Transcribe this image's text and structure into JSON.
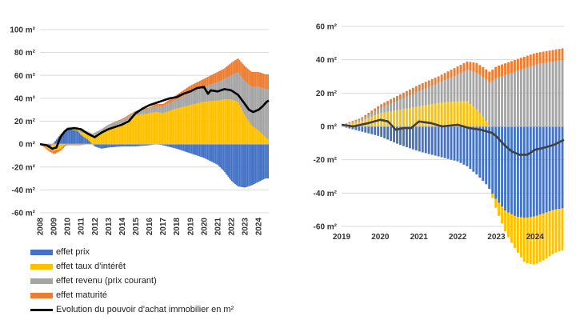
{
  "chart_data": [
    {
      "type": "area",
      "title": "",
      "xlabel": "",
      "ylabel": "",
      "ylim": [
        -60,
        100
      ],
      "y_unit": " m²",
      "y_ticks": [
        100,
        80,
        60,
        40,
        20,
        0,
        -20,
        -40,
        -60
      ],
      "x_range": [
        2008,
        2024.75
      ],
      "x_ticks": [
        "2008",
        "2009",
        "2010",
        "2011",
        "2012",
        "2013",
        "2014",
        "2015",
        "2016",
        "2017",
        "2018",
        "2019",
        "2020",
        "2021",
        "2022",
        "2023",
        "2024"
      ],
      "series": [
        {
          "name": "effet prix",
          "x": [
            2008,
            2008.75,
            2009,
            2009.5,
            2010,
            2010.75,
            2011,
            2011.5,
            2012,
            2012.5,
            2013,
            2014,
            2015,
            2016,
            2016.5,
            2017,
            2018,
            2019,
            2020,
            2021,
            2021.5,
            2022,
            2022.5,
            2023,
            2023.5,
            2024,
            2024.5,
            2024.75
          ],
          "values": [
            0,
            -2,
            1,
            8,
            13,
            12,
            8,
            4,
            -2,
            -4,
            -3,
            -2,
            -2,
            -1,
            0,
            -1,
            -4,
            -8,
            -12,
            -18,
            -24,
            -32,
            -37,
            -38,
            -36,
            -33,
            -30,
            -30
          ]
        },
        {
          "name": "effet taux d'intérêt",
          "x": [
            2008,
            2008.75,
            2009,
            2009.5,
            2010,
            2010.75,
            2011,
            2011.5,
            2012,
            2012.5,
            2013,
            2014,
            2015,
            2016,
            2016.5,
            2017,
            2018,
            2019,
            2020,
            2021,
            2021.5,
            2022,
            2022.5,
            2023,
            2023.5,
            2024,
            2024.5,
            2024.75
          ],
          "values": [
            0,
            -3,
            -6,
            -4,
            1,
            2,
            2,
            5,
            8,
            11,
            14,
            18,
            25,
            27,
            28,
            27,
            31,
            34,
            37,
            38,
            39,
            39,
            37,
            25,
            16,
            12,
            6,
            4
          ]
        },
        {
          "name": "effet revenu (prix courant)",
          "x": [
            2008,
            2008.75,
            2009,
            2009.5,
            2010,
            2010.75,
            2011,
            2011.5,
            2012,
            2012.5,
            2013,
            2014,
            2015,
            2016,
            2016.5,
            2017,
            2018,
            2019,
            2020,
            2021,
            2021.5,
            2022,
            2022.5,
            2023,
            2023.5,
            2024,
            2024.5,
            2024.75
          ],
          "values": [
            0,
            0,
            0,
            1,
            1,
            1,
            2,
            2,
            2,
            2,
            3,
            3,
            3,
            4,
            5,
            6,
            8,
            11,
            13,
            16,
            18,
            21,
            26,
            30,
            34,
            38,
            42,
            44
          ]
        },
        {
          "name": "effet maturité",
          "x": [
            2008,
            2008.75,
            2009,
            2009.5,
            2010,
            2010.75,
            2011,
            2011.5,
            2012,
            2012.5,
            2013,
            2014,
            2015,
            2016,
            2016.5,
            2017,
            2018,
            2019,
            2020,
            2021,
            2021.5,
            2022,
            2022.5,
            2023,
            2023.5,
            2024,
            2024.5,
            2024.75
          ],
          "values": [
            0,
            -2,
            -3,
            -2,
            -1,
            -1,
            -1,
            0,
            0,
            0,
            0,
            1,
            1,
            1,
            2,
            2,
            4,
            6,
            7,
            9,
            9,
            11,
            12,
            13,
            13,
            13,
            13,
            13
          ]
        },
        {
          "name": "Evolution du pouvoir d'achat immobilier en m²",
          "x": [
            2008,
            2008.5,
            2008.9,
            2009.2,
            2009.5,
            2009.8,
            2010,
            2010.5,
            2011,
            2011.5,
            2012,
            2012.5,
            2013,
            2013.5,
            2014,
            2014.5,
            2015,
            2015.5,
            2016,
            2016.5,
            2017,
            2017.5,
            2018,
            2018.5,
            2019,
            2019.5,
            2020,
            2020.3,
            2020.5,
            2021,
            2021.5,
            2022,
            2022.5,
            2023,
            2023.3,
            2023.6,
            2024,
            2024.3,
            2024.6,
            2024.75
          ],
          "values": [
            0,
            -1,
            -4,
            -3,
            6,
            11,
            13,
            14,
            13,
            9,
            6,
            10,
            13,
            15,
            17,
            20,
            27,
            31,
            34,
            36,
            38,
            40,
            41,
            44,
            46,
            49,
            50,
            44,
            47,
            46,
            48,
            47,
            43,
            35,
            30,
            28,
            30,
            33,
            37,
            38
          ]
        }
      ]
    },
    {
      "type": "bar",
      "title": "",
      "xlabel": "",
      "ylabel": "",
      "ylim": [
        -60,
        60
      ],
      "y_unit": " m²",
      "y_ticks": [
        60,
        40,
        20,
        0,
        -20,
        -40,
        -60
      ],
      "x_range": [
        2019,
        2024.75
      ],
      "x_ticks": [
        "2019",
        "2020",
        "2021",
        "2022",
        "2023",
        "2024"
      ],
      "series": [
        {
          "name": "effet prix",
          "x": [
            2019,
            2019.5,
            2020,
            2020.5,
            2021,
            2021.5,
            2022,
            2022.25,
            2022.5,
            2022.75,
            2023,
            2023.25,
            2023.5,
            2023.75,
            2024,
            2024.25,
            2024.5,
            2024.75
          ],
          "values": [
            0,
            -3,
            -6,
            -11,
            -15,
            -18,
            -21,
            -24,
            -29,
            -35,
            -44,
            -51,
            -54,
            -55,
            -54,
            -52,
            -50,
            -49
          ]
        },
        {
          "name": "effet taux d'intérêt",
          "x": [
            2019,
            2019.5,
            2020,
            2020.5,
            2021,
            2021.5,
            2022,
            2022.25,
            2022.5,
            2022.75,
            2023,
            2023.25,
            2023.5,
            2023.75,
            2024,
            2024.25,
            2024.5,
            2024.75
          ],
          "values": [
            1,
            3,
            8,
            10,
            12,
            14,
            15,
            15,
            10,
            3,
            -6,
            -13,
            -20,
            -27,
            -29,
            -28,
            -26,
            -25
          ]
        },
        {
          "name": "effet revenu (prix courant)",
          "x": [
            2019,
            2019.5,
            2020,
            2020.5,
            2021,
            2021.5,
            2022,
            2022.25,
            2022.5,
            2022.75,
            2023,
            2023.25,
            2023.5,
            2023.75,
            2024,
            2024.25,
            2024.5,
            2024.75
          ],
          "values": [
            0,
            1,
            3,
            6,
            9,
            12,
            16,
            19,
            22,
            25,
            29,
            31,
            33,
            35,
            37,
            38,
            39,
            40
          ]
        },
        {
          "name": "effet maturité",
          "x": [
            2019,
            2019.5,
            2020,
            2020.5,
            2021,
            2021.5,
            2022,
            2022.25,
            2022.5,
            2022.75,
            2023,
            2023.25,
            2023.5,
            2023.75,
            2024,
            2024.25,
            2024.5,
            2024.75
          ],
          "values": [
            0,
            1,
            2,
            3,
            4,
            4,
            5,
            5,
            6,
            6,
            7,
            7,
            7,
            7,
            7,
            7,
            7,
            7
          ]
        },
        {
          "name": "Evolution du pouvoir d'achat immobilier en m²",
          "x": [
            2019,
            2019.3,
            2019.7,
            2020,
            2020.2,
            2020.4,
            2020.6,
            2020.8,
            2021,
            2021.3,
            2021.6,
            2022,
            2022.3,
            2022.6,
            2022.9,
            2023,
            2023.2,
            2023.4,
            2023.6,
            2023.8,
            2024,
            2024.2,
            2024.5,
            2024.75
          ],
          "values": [
            1,
            0,
            2,
            4,
            3,
            -2,
            -1,
            -1,
            3,
            2,
            0,
            1,
            -1,
            -2,
            -4,
            -6,
            -11,
            -15,
            -17,
            -17,
            -14,
            -13,
            -11,
            -8
          ]
        }
      ]
    }
  ],
  "legend": [
    {
      "label": "effet prix",
      "color": "#4472C4",
      "kind": "swatch"
    },
    {
      "label": "effet taux d'intérêt",
      "color": "#FFC000",
      "kind": "swatch"
    },
    {
      "label": "effet revenu (prix courant)",
      "color": "#A5A5A5",
      "kind": "swatch"
    },
    {
      "label": "effet maturité",
      "color": "#ED7D31",
      "kind": "swatch"
    },
    {
      "label": "Evolution du pouvoir d'achat immobilier en m²",
      "color": "#000000",
      "kind": "line"
    }
  ],
  "colors": {
    "prix": "#4472C4",
    "taux": "#FFC000",
    "revenu": "#A5A5A5",
    "maturite": "#ED7D31",
    "line_left": "#000000",
    "line_right": "#404040",
    "grid": "#D9D9D9"
  }
}
